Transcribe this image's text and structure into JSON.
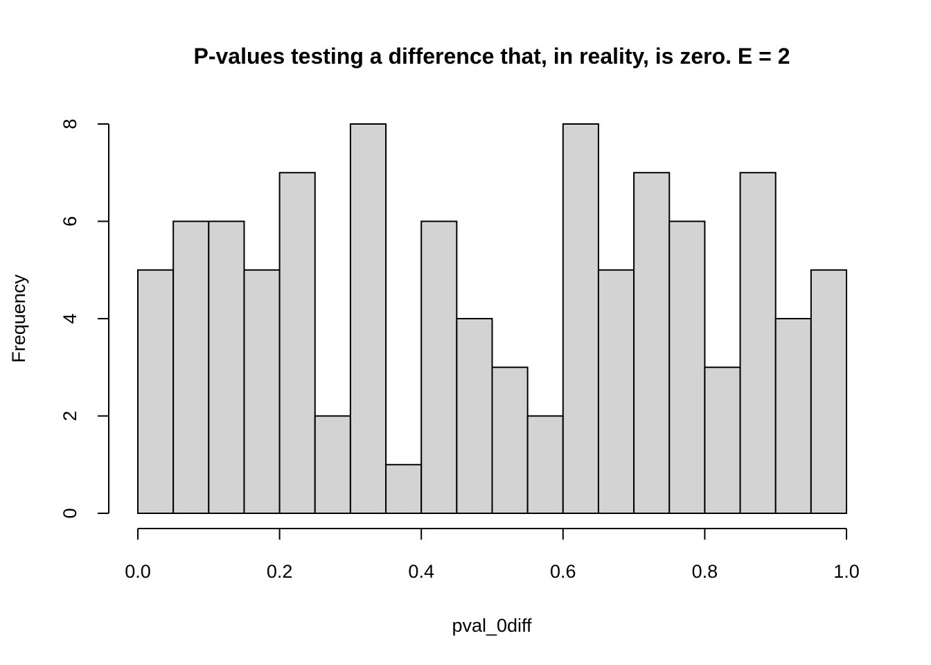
{
  "chart_data": {
    "type": "bar",
    "title": "P-values testing a difference that, in reality, is zero. E = 2",
    "xlabel": "pval_0diff",
    "ylabel": "Frequency",
    "bin_edges": [
      0.0,
      0.05,
      0.1,
      0.15,
      0.2,
      0.25,
      0.3,
      0.35,
      0.4,
      0.45,
      0.5,
      0.55,
      0.6,
      0.65,
      0.7,
      0.75,
      0.8,
      0.85,
      0.9,
      0.95,
      1.0
    ],
    "values": [
      5,
      6,
      6,
      5,
      7,
      2,
      8,
      1,
      6,
      4,
      3,
      2,
      8,
      5,
      7,
      6,
      3,
      7,
      4,
      5
    ],
    "xlim": [
      0,
      1
    ],
    "ylim": [
      0,
      8
    ],
    "x_ticks": [
      "0.0",
      "0.2",
      "0.4",
      "0.6",
      "0.8",
      "1.0"
    ],
    "y_ticks": [
      "0",
      "2",
      "4",
      "6",
      "8"
    ],
    "grid": false,
    "bar_color": "#d3d3d3",
    "edge_color": "#000000"
  }
}
